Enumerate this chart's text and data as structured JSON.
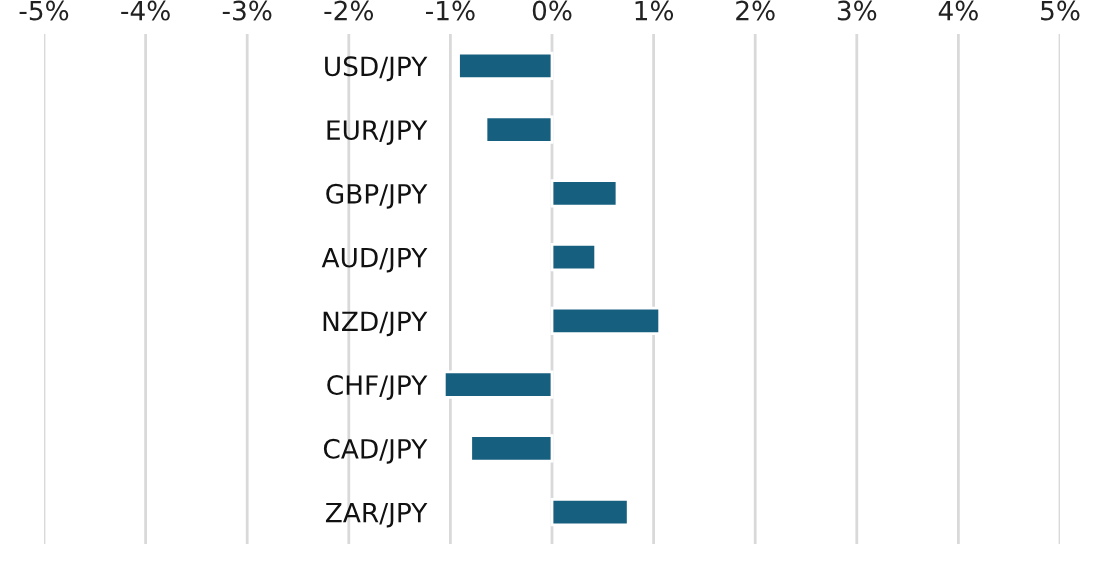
{
  "chart_data": {
    "type": "bar",
    "orientation": "horizontal",
    "categories": [
      "USD/JPY",
      "EUR/JPY",
      "GBP/JPY",
      "AUD/JPY",
      "NZD/JPY",
      "CHF/JPY",
      "CAD/JPY",
      "ZAR/JPY"
    ],
    "values": [
      -0.92,
      -0.65,
      0.64,
      0.43,
      1.06,
      -1.06,
      -0.8,
      0.75
    ],
    "color": "#175f7f",
    "xlim": [
      -5,
      5
    ],
    "xticks": [
      {
        "value": -5,
        "label": "-5%"
      },
      {
        "value": -4,
        "label": "-4%"
      },
      {
        "value": -3,
        "label": "-3%"
      },
      {
        "value": -2,
        "label": "-2%"
      },
      {
        "value": -1,
        "label": "-1%"
      },
      {
        "value": 0,
        "label": "0%"
      },
      {
        "value": 1,
        "label": "1%"
      },
      {
        "value": 2,
        "label": "2%"
      },
      {
        "value": 3,
        "label": "3%"
      },
      {
        "value": 4,
        "label": "4%"
      },
      {
        "value": 5,
        "label": "5%"
      }
    ],
    "grid": "x",
    "legend": false
  }
}
